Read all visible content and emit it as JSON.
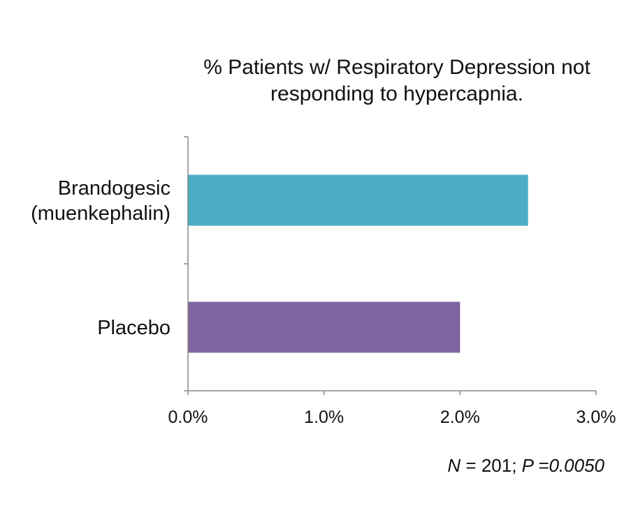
{
  "chart_data": {
    "type": "bar",
    "orientation": "horizontal",
    "title": [
      "% Patients w/ Respiratory Depression not",
      "responding to hypercapnia."
    ],
    "categories": [
      {
        "label_lines": [
          "Brandogesic",
          "(muenkephalin)"
        ],
        "value": 0.025,
        "color": "#4BACC6"
      },
      {
        "label_lines": [
          "Placebo"
        ],
        "value": 0.02,
        "color": "#8064A2"
      }
    ],
    "xlim": [
      0,
      0.03
    ],
    "xticks": [
      "0.0%",
      "1.0%",
      "2.0%",
      "3.0%"
    ],
    "xtick_values": [
      0,
      0.01,
      0.02,
      0.03
    ],
    "grid": false,
    "axis_color": "#888888"
  },
  "footnote": {
    "n_label": "N",
    "n_text": " = 201; ",
    "p_label": "P",
    "p_text": " =0.0050"
  }
}
